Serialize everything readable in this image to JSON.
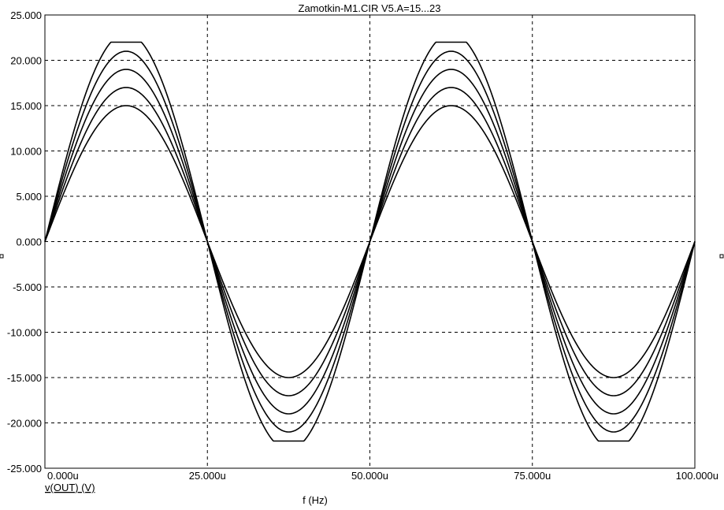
{
  "chart_data": {
    "type": "line",
    "title": "Zamotkin-M1.CIR V5.A=15...23",
    "xlabel": "f (Hz)",
    "ylabel": "",
    "trace_label": "v(OUT) (V)",
    "x_unit_scale": 1e-06,
    "xlim": [
      0,
      100
    ],
    "ylim": [
      -25,
      25
    ],
    "x_ticks": [
      {
        "value": 0,
        "label": "0.000u"
      },
      {
        "value": 25,
        "label": "25.000u"
      },
      {
        "value": 50,
        "label": "50.000u"
      },
      {
        "value": 75,
        "label": "75.000u"
      },
      {
        "value": 100,
        "label": "100.000u"
      }
    ],
    "y_ticks": [
      {
        "value": 25,
        "label": "25.000"
      },
      {
        "value": 20,
        "label": "20.000"
      },
      {
        "value": 15,
        "label": "15.000"
      },
      {
        "value": 10,
        "label": "10.000"
      },
      {
        "value": 5,
        "label": "5.000"
      },
      {
        "value": 0,
        "label": "0.000"
      },
      {
        "value": -5,
        "label": "-5.000"
      },
      {
        "value": -10,
        "label": "-10.000"
      },
      {
        "value": -15,
        "label": "-15.000"
      },
      {
        "value": -20,
        "label": "-20.000"
      },
      {
        "value": -25,
        "label": "-25.000"
      }
    ],
    "grid": true,
    "signal": {
      "shape": "sine",
      "period": 50,
      "clip_level": 22
    },
    "series": [
      {
        "amplitude": 15
      },
      {
        "amplitude": 17
      },
      {
        "amplitude": 19
      },
      {
        "amplitude": 21
      },
      {
        "amplitude": 23
      }
    ]
  }
}
